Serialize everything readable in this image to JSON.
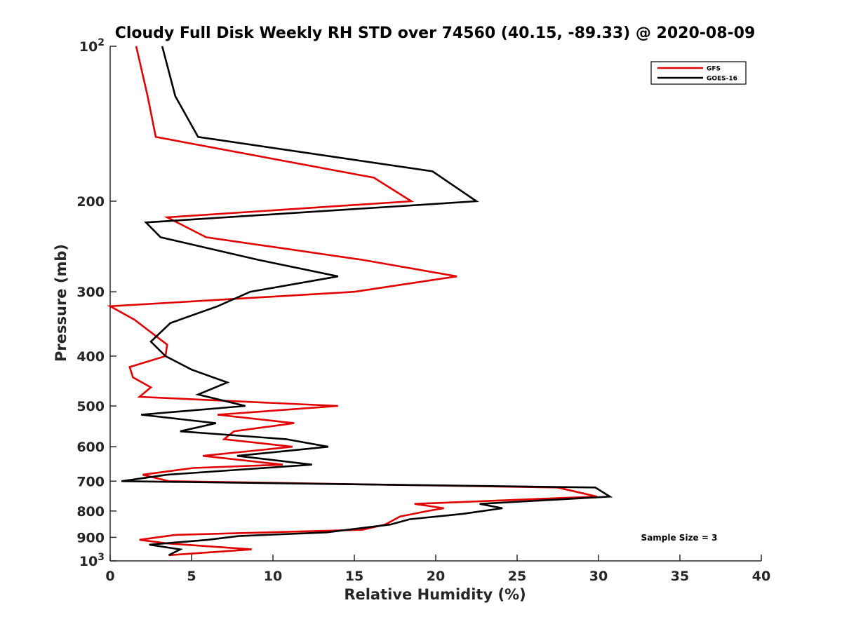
{
  "chart_data": {
    "type": "line",
    "title": "Cloudy Full Disk Weekly RH STD over 74560 (40.15, -89.33) @ 2020-08-09",
    "xlabel": "Relative Humidity (%)",
    "ylabel": "Pressure (mb)",
    "xlim": [
      0,
      40
    ],
    "ylim": [
      100,
      1000
    ],
    "y_scale": "log",
    "y_reversed": true,
    "grid": false,
    "legend_position": "top-right",
    "x_ticks": [
      "0",
      "5",
      "10",
      "15",
      "20",
      "25",
      "30",
      "35",
      "40"
    ],
    "y_ticks": [
      {
        "value": 100,
        "base": "10",
        "exp": "2"
      },
      {
        "value": 200,
        "label": "200"
      },
      {
        "value": 300,
        "label": "300"
      },
      {
        "value": 400,
        "label": "400"
      },
      {
        "value": 500,
        "label": "500"
      },
      {
        "value": 600,
        "label": "600"
      },
      {
        "value": 700,
        "label": "700"
      },
      {
        "value": 800,
        "label": "800"
      },
      {
        "value": 900,
        "label": "900"
      },
      {
        "value": 1000,
        "base": "10",
        "exp": "3"
      }
    ],
    "series": [
      {
        "name": "GFS",
        "color": "#e00000",
        "points": [
          [
            1.6,
            100
          ],
          [
            2.3,
            125
          ],
          [
            2.8,
            150
          ],
          [
            16.2,
            180
          ],
          [
            18.5,
            200
          ],
          [
            3.5,
            215
          ],
          [
            5.9,
            235
          ],
          [
            15.5,
            260
          ],
          [
            21.3,
            280
          ],
          [
            15.0,
            300
          ],
          [
            0.0,
            320
          ],
          [
            1.5,
            340
          ],
          [
            3.5,
            380
          ],
          [
            3.4,
            400
          ],
          [
            1.2,
            420
          ],
          [
            1.4,
            440
          ],
          [
            2.5,
            460
          ],
          [
            1.8,
            480
          ],
          [
            14.0,
            500
          ],
          [
            6.6,
            520
          ],
          [
            11.3,
            540
          ],
          [
            7.6,
            560
          ],
          [
            7.0,
            580
          ],
          [
            11.2,
            600
          ],
          [
            5.7,
            625
          ],
          [
            10.6,
            650
          ],
          [
            5.1,
            660
          ],
          [
            2.0,
            680
          ],
          [
            3.6,
            700
          ],
          [
            27.5,
            720
          ],
          [
            29.9,
            750
          ],
          [
            18.7,
            775
          ],
          [
            20.5,
            790
          ],
          [
            19.5,
            800
          ],
          [
            17.8,
            820
          ],
          [
            16.9,
            850
          ],
          [
            15.5,
            870
          ],
          [
            4.0,
            890
          ],
          [
            1.8,
            910
          ],
          [
            3.5,
            925
          ],
          [
            8.7,
            950
          ],
          [
            3.6,
            975
          ]
        ]
      },
      {
        "name": "GOES-16",
        "color": "#000000",
        "points": [
          [
            3.2,
            100
          ],
          [
            4.0,
            125
          ],
          [
            5.4,
            150
          ],
          [
            19.8,
            175
          ],
          [
            22.5,
            200
          ],
          [
            2.2,
            220
          ],
          [
            3.1,
            235
          ],
          [
            9.1,
            260
          ],
          [
            14.0,
            280
          ],
          [
            8.6,
            300
          ],
          [
            6.6,
            320
          ],
          [
            3.7,
            345
          ],
          [
            2.5,
            375
          ],
          [
            3.4,
            400
          ],
          [
            5.0,
            425
          ],
          [
            7.2,
            450
          ],
          [
            5.4,
            475
          ],
          [
            8.3,
            500
          ],
          [
            1.9,
            520
          ],
          [
            6.5,
            540
          ],
          [
            4.3,
            560
          ],
          [
            10.8,
            580
          ],
          [
            13.4,
            600
          ],
          [
            7.8,
            625
          ],
          [
            12.4,
            650
          ],
          [
            3.5,
            680
          ],
          [
            0.7,
            700
          ],
          [
            29.8,
            720
          ],
          [
            30.7,
            750
          ],
          [
            22.7,
            775
          ],
          [
            24.1,
            790
          ],
          [
            21.7,
            810
          ],
          [
            18.4,
            830
          ],
          [
            17.2,
            850
          ],
          [
            13.3,
            880
          ],
          [
            7.9,
            895
          ],
          [
            6.0,
            910
          ],
          [
            2.4,
            930
          ],
          [
            4.3,
            950
          ],
          [
            3.6,
            975
          ]
        ]
      }
    ],
    "annotation": "Sample Size = 3"
  }
}
